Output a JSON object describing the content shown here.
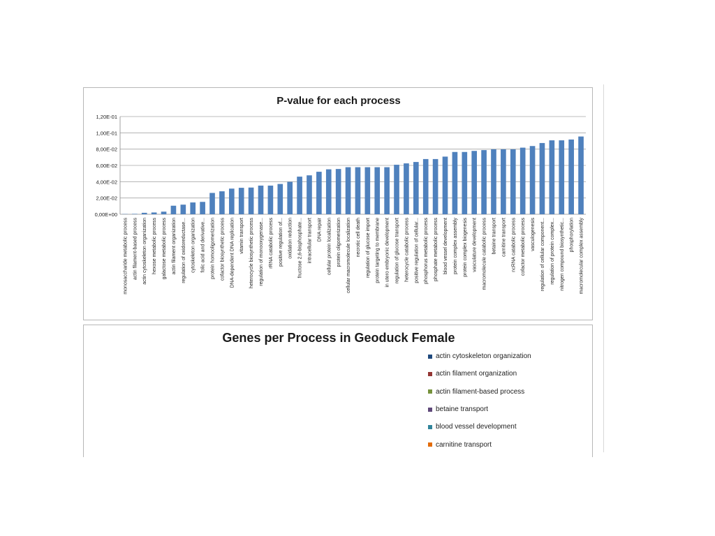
{
  "chart_data": [
    {
      "type": "bar",
      "title": "P-value for each process",
      "xlabel": "",
      "ylabel": "",
      "ylim": [
        0,
        0.12
      ],
      "yticks": [
        "0,00E+00",
        "2,00E-02",
        "4,00E-02",
        "6,00E-02",
        "8,00E-02",
        "1,00E-01",
        "1,20E-01"
      ],
      "grid": true,
      "color": "#4f81bd",
      "categories": [
        "monosaccharide metabolic process",
        "actin filament-based process",
        "actin cytoskeleton organization",
        "hexose metabolic process",
        "galactose metabolic process",
        "actin filament organization",
        "regulation of oxidoreductase...",
        "cytoskeleton organization",
        "folic acid and derivative...",
        "protein homooligomerization",
        "cofactor biosynthetic process",
        "DNA-dependent DNA replication",
        "vitamin transport",
        "heterocycle biosynthetic process",
        "regulation of monooxygenase...",
        "rRNA catabolic process",
        "positive regulation of...",
        "oxidation reduction",
        "fructose 2,6-bisphosphate...",
        "intracellular transport",
        "DNA repair",
        "cellular protein localization",
        "protein oligomerization",
        "cellular macromolecule localization",
        "necrotic cell death",
        "regulation of glucose import",
        "protein targeting to membrane",
        "in utero embryonic development",
        "regulation of glucose transport",
        "heterocycle catabolic process",
        "positive regulation of cellular...",
        "phosphorus metabolic process",
        "phosphate metabolic process",
        "blood vessel development",
        "protein complex assembly",
        "protein complex biogenesis",
        "vasculature development",
        "macromolecule catabolic process",
        "betaine transport",
        "carnitine transport",
        "ncRNA catabolic process",
        "cofactor metabolic process",
        "vasculogenesis",
        "regulation of cellular component...",
        "regulation of protein complex...",
        "nitrogen compound biosynthetic...",
        "phosphorylation",
        "macromolecular complex assembly"
      ],
      "values": [
        0.0003,
        0.0005,
        0.0018,
        0.0022,
        0.0032,
        0.0105,
        0.0118,
        0.0145,
        0.0152,
        0.0262,
        0.0282,
        0.0315,
        0.0325,
        0.0328,
        0.0352,
        0.0352,
        0.0372,
        0.0398,
        0.0462,
        0.0478,
        0.0522,
        0.0552,
        0.0556,
        0.0578,
        0.0578,
        0.0578,
        0.0578,
        0.0578,
        0.0608,
        0.0625,
        0.0642,
        0.0678,
        0.0678,
        0.0708,
        0.0765,
        0.0765,
        0.0778,
        0.0788,
        0.0798,
        0.0798,
        0.0798,
        0.0818,
        0.0838,
        0.0875,
        0.0908,
        0.0908,
        0.0918,
        0.0955
      ]
    },
    {
      "type": "pie",
      "title": "Genes per Process in Geoduck Female",
      "legend_position": "right",
      "legend": [
        {
          "label": "actin cytoskeleton organization",
          "color": "#1f497d"
        },
        {
          "label": "actin filament organization",
          "color": "#943634"
        },
        {
          "label": "actin filament-based process",
          "color": "#76923c"
        },
        {
          "label": "betaine transport",
          "color": "#5f497a"
        },
        {
          "label": "blood vessel development",
          "color": "#31849b"
        },
        {
          "label": "carnitine transport",
          "color": "#e36c09"
        }
      ]
    }
  ]
}
